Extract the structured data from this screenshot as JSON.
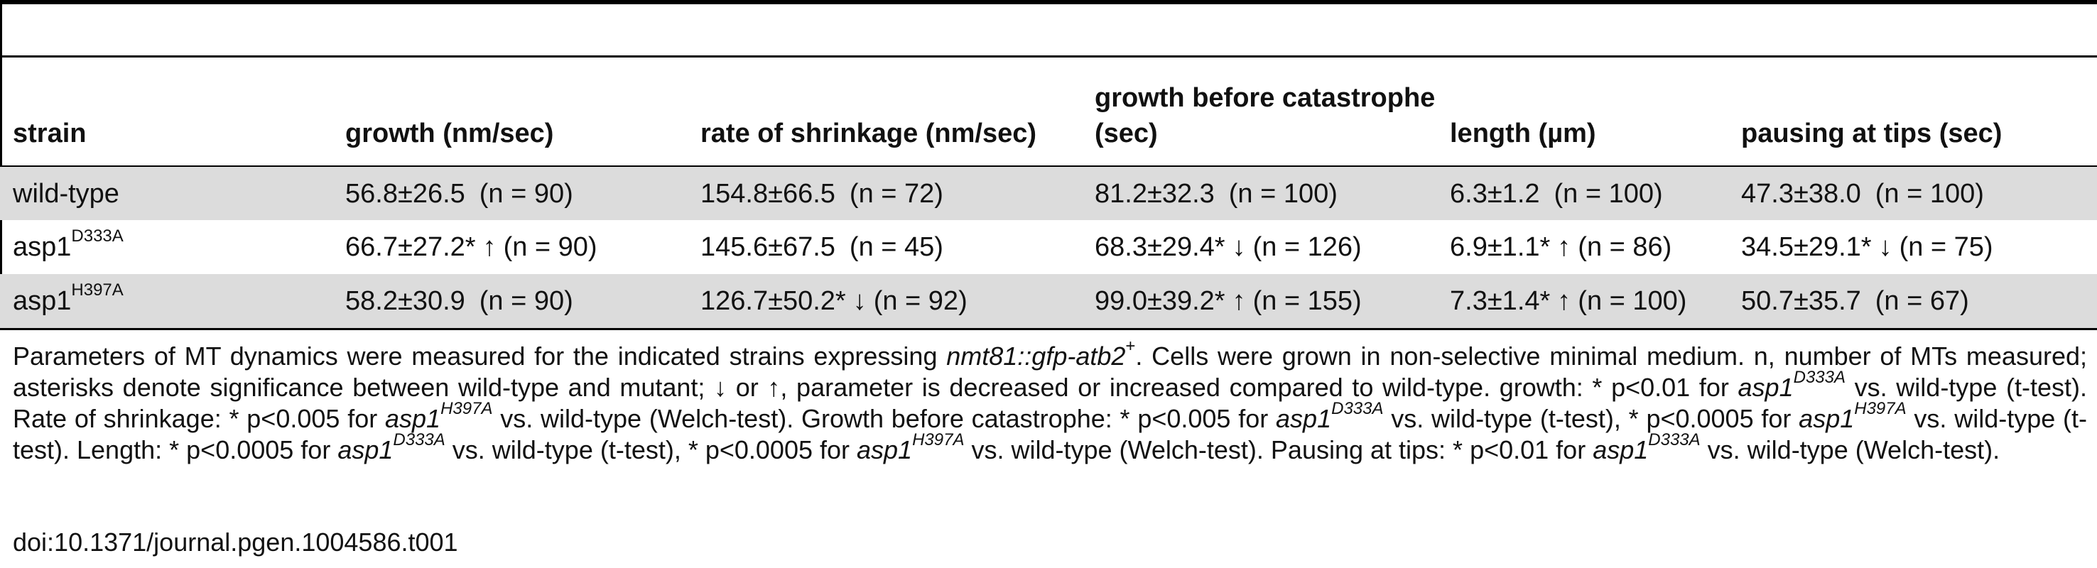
{
  "columns": [
    "strain",
    "growth (nm/sec)",
    "rate of shrinkage (nm/sec)",
    "growth before catastrophe (sec)",
    "length (µm)",
    "pausing at tips (sec)"
  ],
  "rows": [
    {
      "strain_base": "wild-type",
      "strain_sup": "",
      "cells": [
        {
          "val": "56.8±26.5",
          "arrow": "",
          "n": "(n = 90)"
        },
        {
          "val": "154.8±66.5",
          "arrow": "",
          "n": "(n = 72)"
        },
        {
          "val": "81.2±32.3",
          "arrow": "",
          "n": "(n = 100)"
        },
        {
          "val": "6.3±1.2",
          "arrow": "",
          "n": "(n = 100)"
        },
        {
          "val": "47.3±38.0",
          "arrow": "",
          "n": "(n = 100)"
        }
      ]
    },
    {
      "strain_base": "asp1",
      "strain_sup": "D333A",
      "cells": [
        {
          "val": "66.7±27.2*",
          "arrow": "↑",
          "n": "(n = 90)"
        },
        {
          "val": "145.6±67.5",
          "arrow": "",
          "n": "(n = 45)"
        },
        {
          "val": "68.3±29.4*",
          "arrow": "↓",
          "n": "(n = 126)"
        },
        {
          "val": "6.9±1.1*",
          "arrow": "↑",
          "n": "(n = 86)"
        },
        {
          "val": "34.5±29.1*",
          "arrow": "↓",
          "n": "(n = 75)"
        }
      ]
    },
    {
      "strain_base": "asp1",
      "strain_sup": "H397A",
      "cells": [
        {
          "val": "58.2±30.9",
          "arrow": "",
          "n": "(n = 90)"
        },
        {
          "val": "126.7±50.2*",
          "arrow": "↓",
          "n": "(n = 92)"
        },
        {
          "val": "99.0±39.2*",
          "arrow": "↑",
          "n": "(n = 155)"
        },
        {
          "val": "7.3±1.4*",
          "arrow": "↑",
          "n": "(n = 100)"
        },
        {
          "val": "50.7±35.7",
          "arrow": "",
          "n": "(n = 67)"
        }
      ]
    }
  ],
  "footnote": {
    "s1": "Parameters of MT dynamics were measured for the indicated strains expressing ",
    "construct": "nmt81::gfp-atb2",
    "construct_sup": "+",
    "s2": ". Cells were grown in non-selective minimal medium. n, number of MTs measured; asterisks denote significance between wild-type and mutant; ↓ or ↑, parameter is decreased or increased compared to wild-type. growth: * p<0.01 for ",
    "s3": " vs. wild-type (t-test). Rate of shrinkage: * p<0.005 for ",
    "s4": " vs. wild-type (Welch-test). Growth before catastrophe: * p<0.005 for ",
    "s5": " vs. wild-type (t-test), * p<0.0005 for ",
    "s6": " vs. wild-type (t-test). Length: * p<0.0005 for ",
    "s7": " vs. wild-type (t-test), * p<0.0005 for ",
    "s8": " vs. wild-type (Welch-test). Pausing at tips: * p<0.01 for ",
    "s9": " vs. wild-type (Welch-test).",
    "gene": "asp1",
    "m1": "D333A",
    "m2": "H397A"
  },
  "doi": "doi:10.1371/journal.pgen.1004586.t001"
}
